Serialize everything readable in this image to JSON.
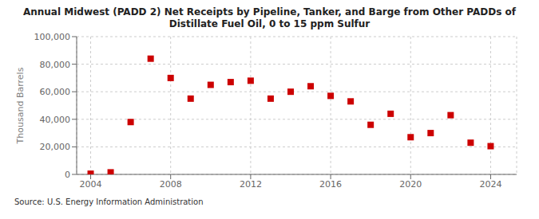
{
  "chart_data": {
    "type": "scatter",
    "title": "Annual Midwest (PADD 2) Net Receipts by Pipeline, Tanker, and Barge from Other PADDs of\nDistillate Fuel Oil, 0 to 15 ppm Sulfur",
    "ylabel": "Thousand Barrels",
    "annotations": [
      "Source: U.S. Energy Information Administration"
    ],
    "x": [
      2004,
      2005,
      2006,
      2007,
      2008,
      2009,
      2010,
      2011,
      2012,
      2013,
      2014,
      2015,
      2016,
      2017,
      2018,
      2019,
      2020,
      2021,
      2022,
      2023,
      2024
    ],
    "values": [
      500,
      1500,
      38000,
      84000,
      70000,
      55000,
      65000,
      67000,
      68000,
      55000,
      60000,
      64000,
      57000,
      53000,
      36000,
      44000,
      27000,
      30000,
      43000,
      23000,
      20500
    ],
    "color": "#CC0000",
    "marker": "square",
    "xlim": [
      2003.3,
      2025.3
    ],
    "ylim": [
      0,
      100000
    ],
    "xticks": [
      2004,
      2008,
      2012,
      2016,
      2020,
      2024
    ],
    "yticks": [
      0,
      {
        "value": 20000,
        "label": "20,000"
      },
      {
        "value": 40000,
        "label": "40,000"
      },
      {
        "value": 60000,
        "label": "60,000"
      },
      {
        "value": 80000,
        "label": "80,000"
      },
      {
        "value": 100000,
        "label": "100,000"
      }
    ],
    "grid": true
  }
}
